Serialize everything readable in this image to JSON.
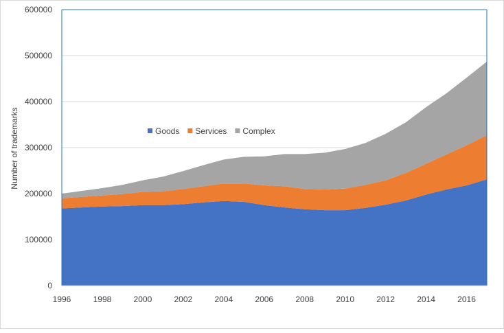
{
  "chart_data": {
    "type": "area",
    "stacked": true,
    "title": "",
    "xlabel": "",
    "ylabel": "Number of trademarks",
    "ylim": [
      0,
      600000
    ],
    "yticks": [
      0,
      100000,
      200000,
      300000,
      400000,
      500000,
      600000
    ],
    "ytick_labels": [
      "0",
      "100000",
      "200000",
      "300000",
      "400000",
      "500000",
      "600000"
    ],
    "xlim": [
      1996,
      2017
    ],
    "xtick_labels": [
      "1996",
      "1998",
      "2000",
      "2002",
      "2004",
      "2006",
      "2008",
      "2010",
      "2012",
      "2014",
      "2016"
    ],
    "x": [
      1996,
      1997,
      1998,
      1999,
      2000,
      2001,
      2002,
      2003,
      2004,
      2005,
      2006,
      2007,
      2008,
      2009,
      2010,
      2011,
      2012,
      2013,
      2014,
      2015,
      2016,
      2017
    ],
    "series": [
      {
        "name": "Goods",
        "color": "#4472c4",
        "values": [
          168000,
          170000,
          172000,
          173000,
          175000,
          175000,
          177000,
          181000,
          184000,
          182000,
          175000,
          170000,
          166000,
          164000,
          164000,
          169000,
          176000,
          185000,
          198000,
          209000,
          218000,
          231000
        ]
      },
      {
        "name": "Services",
        "color": "#ed7d31",
        "values": [
          22000,
          23000,
          24000,
          26000,
          29000,
          30000,
          33000,
          35000,
          38000,
          40000,
          43000,
          46000,
          44000,
          45000,
          47000,
          50000,
          53000,
          60000,
          67000,
          76000,
          87000,
          96000
        ]
      },
      {
        "name": "Complex",
        "color": "#a5a5a5",
        "values": [
          10000,
          13000,
          16000,
          20000,
          25000,
          32000,
          39000,
          46000,
          52000,
          58000,
          63000,
          70000,
          76000,
          80000,
          86000,
          91000,
          101000,
          110000,
          123000,
          133000,
          147000,
          160000
        ]
      }
    ],
    "legend_position": "inside-left",
    "grid": "horizontal"
  }
}
